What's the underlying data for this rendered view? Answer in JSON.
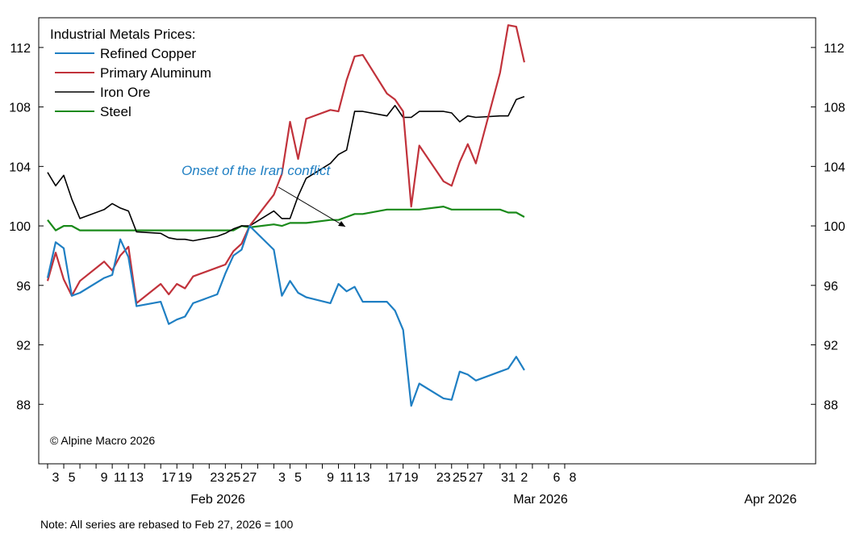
{
  "note": "Note: All series are rebased to Feb 27, 2026 = 100",
  "chart_data": {
    "type": "line",
    "legend_title": "Industrial Metals Prices:",
    "legend_position": "top-left",
    "grid": false,
    "copyright": "© Alpine Macro 2026",
    "annotation": "Onset of the Iran conflict",
    "ylim": [
      84,
      114
    ],
    "yticks": [
      88,
      92,
      96,
      100,
      104,
      108,
      112
    ],
    "x_day_ticks": [
      "3",
      "5",
      "9",
      "11",
      "13",
      "17",
      "19",
      "23",
      "25",
      "27",
      "3",
      "5",
      "9",
      "11",
      "13",
      "17",
      "19",
      "23",
      "25",
      "27",
      "31",
      "2",
      "6",
      "8"
    ],
    "month_labels": [
      "Feb 2026",
      "Mar 2026",
      "Apr 2026"
    ],
    "colors": {
      "Refined Copper": "#1f7fc3",
      "Primary Aluminum": "#c1323b",
      "Iron Ore": "#000000",
      "Steel": "#1a8a1a",
      "annotation": "#1f7fc3"
    },
    "x": [
      "2026-02-02",
      "2026-02-03",
      "2026-02-04",
      "2026-02-05",
      "2026-02-06",
      "2026-02-09",
      "2026-02-10",
      "2026-02-11",
      "2026-02-12",
      "2026-02-13",
      "2026-02-16",
      "2026-02-17",
      "2026-02-18",
      "2026-02-19",
      "2026-02-20",
      "2026-02-23",
      "2026-02-24",
      "2026-02-25",
      "2026-02-26",
      "2026-02-27",
      "2026-03-02",
      "2026-03-03",
      "2026-03-04",
      "2026-03-05",
      "2026-03-06",
      "2026-03-09",
      "2026-03-10",
      "2026-03-11",
      "2026-03-12",
      "2026-03-13",
      "2026-03-16",
      "2026-03-17",
      "2026-03-18",
      "2026-03-19",
      "2026-03-20",
      "2026-03-23",
      "2026-03-24",
      "2026-03-25",
      "2026-03-26",
      "2026-03-27",
      "2026-03-30",
      "2026-03-31",
      "2026-04-01",
      "2026-04-02"
    ],
    "series": [
      {
        "name": "Refined Copper",
        "values": [
          96.5,
          98.9,
          98.5,
          95.3,
          95.5,
          96.5,
          96.7,
          99.1,
          97.9,
          94.6,
          94.9,
          93.4,
          93.7,
          93.9,
          94.8,
          95.4,
          96.8,
          98.0,
          98.4,
          100.0,
          98.4,
          95.3,
          96.3,
          95.5,
          95.2,
          94.8,
          96.1,
          95.6,
          95.9,
          94.9,
          94.9,
          94.3,
          93.0,
          87.9,
          89.4,
          88.4,
          88.3,
          90.2,
          90.0,
          89.6,
          90.2,
          90.4,
          91.2,
          90.3
        ]
      },
      {
        "name": "Primary Aluminum",
        "values": [
          96.3,
          98.2,
          96.4,
          95.3,
          96.3,
          97.6,
          97.0,
          98.0,
          98.6,
          94.8,
          96.1,
          95.4,
          96.1,
          95.8,
          96.6,
          97.2,
          97.4,
          98.3,
          98.8,
          100.0,
          102.1,
          103.5,
          107.0,
          104.5,
          107.2,
          107.8,
          107.7,
          109.8,
          111.4,
          111.5,
          108.9,
          108.5,
          107.7,
          101.3,
          105.4,
          103.0,
          102.7,
          104.3,
          105.5,
          104.2,
          110.3,
          113.5,
          113.4,
          111.0
        ]
      },
      {
        "name": "Iron Ore",
        "values": [
          103.6,
          102.7,
          103.4,
          101.8,
          100.5,
          101.1,
          101.5,
          101.2,
          101.0,
          99.6,
          99.5,
          99.2,
          99.1,
          99.1,
          99.0,
          99.3,
          99.5,
          99.8,
          100.0,
          100.0,
          101.0,
          100.5,
          100.5,
          102.0,
          103.2,
          104.2,
          104.8,
          105.1,
          107.7,
          107.7,
          107.4,
          108.1,
          107.3,
          107.3,
          107.7,
          107.7,
          107.6,
          107.0,
          107.4,
          107.3,
          107.4,
          107.4,
          108.5,
          108.7
        ]
      },
      {
        "name": "Steel",
        "values": [
          100.4,
          99.7,
          100.0,
          100.0,
          99.7,
          99.7,
          99.7,
          99.7,
          99.7,
          99.7,
          99.7,
          99.7,
          99.7,
          99.7,
          99.7,
          99.7,
          99.7,
          99.7,
          100.0,
          99.9,
          100.1,
          100.0,
          100.2,
          100.2,
          100.2,
          100.4,
          100.4,
          100.6,
          100.8,
          100.8,
          101.1,
          101.1,
          101.1,
          101.1,
          101.1,
          101.3,
          101.1,
          101.1,
          101.1,
          101.1,
          101.1,
          100.9,
          100.9,
          100.6
        ]
      }
    ]
  }
}
